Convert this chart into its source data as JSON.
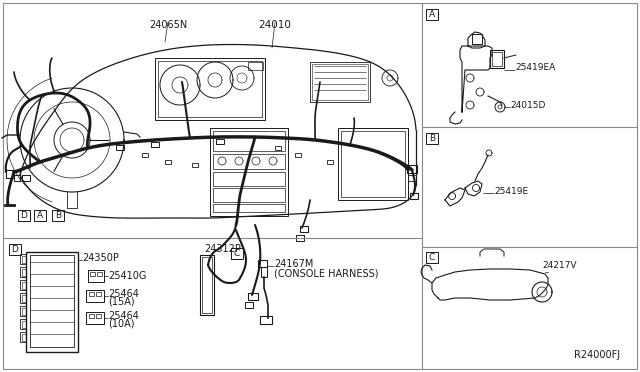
{
  "bg_color": "#ffffff",
  "line_color": "#1a1a1a",
  "gray_color": "#888888",
  "fig_width": 6.4,
  "fig_height": 3.72,
  "dpi": 100,
  "labels": {
    "main_part": "24010",
    "sub1": "24065N",
    "sub2": "24350P",
    "sub3": "24312P",
    "sub4": "25410G",
    "sub5_1": "25464",
    "sub5_2": "(15A)",
    "sub6_1": "25464",
    "sub6_2": "(10A)",
    "sub7": "24167M",
    "sub8": "(CONSOLE HARNESS)",
    "sub9": "25419EA",
    "sub10": "24015D",
    "sub11": "25419E",
    "sub12": "24217V",
    "ref_code": "R24000FJ",
    "box_a": "A",
    "box_b": "B",
    "box_c": "C",
    "box_d": "D",
    "label_a": "A",
    "label_b": "B",
    "label_d": "D"
  }
}
